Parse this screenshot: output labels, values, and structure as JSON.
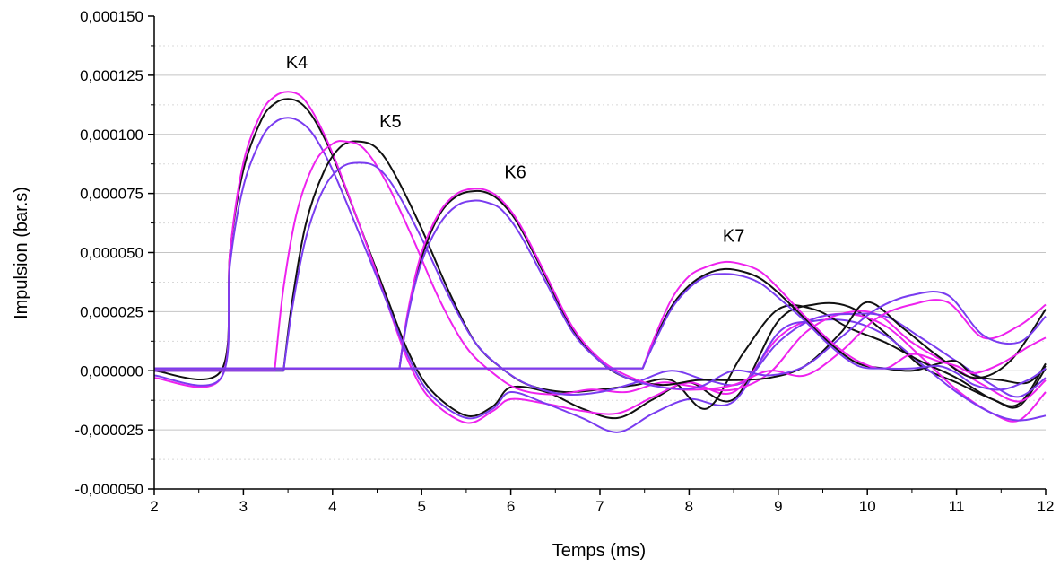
{
  "chart_data": {
    "type": "line",
    "title": "",
    "xlabel": "Temps (ms)",
    "ylabel": "Impulsion (bar.s)",
    "xlim": [
      2,
      12
    ],
    "ylim": [
      -5e-05,
      0.00015
    ],
    "x_ticks": [
      2,
      3,
      4,
      5,
      6,
      7,
      8,
      9,
      10,
      11,
      12
    ],
    "y_ticks": [
      "-0,000050",
      "-0,000025",
      "0,000000",
      "0,000025",
      "0,000050",
      "0,000075",
      "0,000100",
      "0,000125",
      "0,000150"
    ],
    "grid": {
      "major_y": true,
      "minor_y_dotted": true,
      "x": false
    },
    "legend": "none",
    "colors": {
      "black": "#111111",
      "magenta": "#ee22ee",
      "purple": "#7a3cf0"
    },
    "annotations": [
      {
        "text": "K4",
        "x": 3.6,
        "y": 0.000128
      },
      {
        "text": "K5",
        "x": 4.65,
        "y": 0.000103
      },
      {
        "text": "K6",
        "x": 6.05,
        "y": 8.15e-05
      },
      {
        "text": "K7",
        "x": 8.5,
        "y": 5.45e-05
      }
    ],
    "series": [
      {
        "group": "K4",
        "color": "#111111",
        "x": [
          2,
          2.75,
          2.85,
          3.0,
          3.2,
          3.35,
          3.5,
          3.65,
          3.8,
          4.0,
          4.3,
          4.6,
          4.85,
          5.1,
          5.5,
          5.8,
          6.0,
          6.4,
          6.8,
          7.2,
          7.6,
          8.0,
          8.5,
          9.0,
          9.4,
          9.8,
          10.2,
          10.6,
          11.0,
          11.4,
          11.7,
          12
        ],
        "y": [
          0,
          0,
          5e-05,
          8.5e-05,
          0.000106,
          0.000113,
          0.000115,
          0.000113,
          0.000106,
          9.1e-05,
          6.2e-05,
          3.2e-05,
          8e-06,
          -8e-06,
          -1.9e-05,
          -1.5e-05,
          -7e-06,
          -9e-06,
          -1.6e-05,
          -2e-05,
          -1.2e-05,
          -5e-06,
          -1.2e-05,
          2.1e-05,
          2.8e-05,
          2.7e-05,
          1.6e-05,
          2e-06,
          -5e-06,
          -1.2e-05,
          -1.5e-05,
          1e-06
        ]
      },
      {
        "group": "K4",
        "color": "#ee22ee",
        "x": [
          2,
          2.75,
          2.85,
          3.0,
          3.2,
          3.35,
          3.5,
          3.65,
          3.8,
          4.0,
          4.3,
          4.6,
          4.85,
          5.1,
          5.5,
          5.8,
          6.0,
          6.4,
          6.8,
          7.2,
          7.6,
          8.0,
          8.5,
          9.0,
          9.4,
          9.8,
          10.2,
          10.6,
          11.0,
          11.4,
          11.7,
          12
        ],
        "y": [
          -3e-06,
          -3e-06,
          5e-05,
          8.8e-05,
          0.000109,
          0.000116,
          0.000118,
          0.000116,
          0.000108,
          9.2e-05,
          6.2e-05,
          3e-05,
          4e-06,
          -1.2e-05,
          -2.2e-05,
          -1.7e-05,
          -1.2e-05,
          -1.4e-05,
          -1.7e-05,
          -1.8e-05,
          -1.1e-05,
          -5e-06,
          -9e-06,
          1.4e-05,
          2.2e-05,
          2.4e-05,
          1.9e-05,
          6e-06,
          -8e-06,
          -1.8e-05,
          -2.1e-05,
          -9e-06
        ]
      },
      {
        "group": "K4",
        "color": "#7a3cf0",
        "x": [
          2,
          2.75,
          2.85,
          3.0,
          3.2,
          3.35,
          3.5,
          3.65,
          3.8,
          4.0,
          4.3,
          4.6,
          4.85,
          5.1,
          5.5,
          5.8,
          6.0,
          6.4,
          6.8,
          7.2,
          7.6,
          8.0,
          8.5,
          9.0,
          9.4,
          9.8,
          10.2,
          10.6,
          11.0,
          11.4,
          11.7,
          12
        ],
        "y": [
          -2e-06,
          -3e-06,
          4.5e-05,
          7.8e-05,
          9.8e-05,
          0.000105,
          0.000107,
          0.000105,
          9.9e-05,
          8.5e-05,
          5.8e-05,
          3e-05,
          6e-06,
          -1e-05,
          -2e-05,
          -1.6e-05,
          -9e-06,
          -1.4e-05,
          -2e-05,
          -2.6e-05,
          -1.8e-05,
          -1.2e-05,
          -1.3e-05,
          1.6e-05,
          2.1e-05,
          2.1e-05,
          1.5e-05,
          3e-06,
          -9e-06,
          -1.8e-05,
          -2.1e-05,
          -1.9e-05
        ]
      },
      {
        "group": "K5",
        "color": "#111111",
        "x": [
          2,
          3.45,
          3.55,
          3.7,
          3.9,
          4.1,
          4.3,
          4.5,
          4.7,
          5.0,
          5.3,
          5.6,
          5.9,
          6.2,
          6.6,
          7.0,
          7.4,
          7.8,
          8.2,
          8.6,
          9.0,
          9.4,
          9.8,
          10.2,
          10.6,
          11.0,
          11.4,
          11.7,
          12
        ],
        "y": [
          0,
          0,
          3e-05,
          6.2e-05,
          8.4e-05,
          9.5e-05,
          9.7e-05,
          9.4e-05,
          8.3e-05,
          6e-05,
          3.4e-05,
          1.2e-05,
          1e-06,
          -6e-06,
          -9e-06,
          -8e-06,
          -6e-06,
          -4e-06,
          -1.6e-05,
          7e-06,
          2.6e-05,
          2.6e-05,
          1.8e-05,
          1.2e-05,
          4e-06,
          -3e-06,
          -1.2e-05,
          -1.4e-05,
          3e-06
        ]
      },
      {
        "group": "K5",
        "color": "#ee22ee",
        "x": [
          2,
          3.35,
          3.45,
          3.6,
          3.8,
          4.0,
          4.15,
          4.35,
          4.6,
          4.9,
          5.2,
          5.5,
          5.8,
          6.1,
          6.5,
          6.9,
          7.3,
          7.7,
          8.1,
          8.5,
          8.9,
          9.3,
          9.7,
          10.1,
          10.5,
          10.9,
          11.3,
          11.7,
          12
        ],
        "y": [
          0,
          0,
          3.5e-05,
          6.7e-05,
          8.8e-05,
          9.6e-05,
          9.7e-05,
          9.4e-05,
          8e-05,
          5.6e-05,
          3e-05,
          1e-05,
          -1e-06,
          -8e-06,
          -1e-05,
          -8e-06,
          -9e-06,
          -5e-06,
          -7e-06,
          -8e-06,
          -1e-06,
          1.6e-05,
          2.4e-05,
          2.4e-05,
          1.2e-05,
          3e-06,
          -6e-06,
          -1.3e-05,
          -4e-06
        ]
      },
      {
        "group": "K5",
        "color": "#7a3cf0",
        "x": [
          2,
          3.45,
          3.55,
          3.7,
          3.9,
          4.1,
          4.3,
          4.5,
          4.7,
          5.0,
          5.3,
          5.6,
          5.9,
          6.2,
          6.6,
          7.0,
          7.4,
          7.8,
          8.2,
          8.6,
          9.0,
          9.4,
          9.8,
          10.2,
          10.6,
          11.0,
          11.4,
          11.7,
          12
        ],
        "y": [
          0,
          0,
          2.7e-05,
          5.6e-05,
          7.7e-05,
          8.6e-05,
          8.8e-05,
          8.6e-05,
          7.7e-05,
          5.6e-05,
          3.2e-05,
          1.2e-05,
          1e-06,
          -6e-06,
          -1e-05,
          -9e-06,
          -5e-06,
          0,
          -4e-06,
          -5e-06,
          1.2e-05,
          2.2e-05,
          2.4e-05,
          2.3e-05,
          1.4e-05,
          4e-06,
          -6e-06,
          -1.1e-05,
          -3e-06
        ]
      },
      {
        "group": "K6",
        "color": "#111111",
        "x": [
          2,
          4.75,
          4.85,
          5.0,
          5.2,
          5.4,
          5.6,
          5.75,
          5.9,
          6.1,
          6.4,
          6.7,
          7.0,
          7.3,
          7.7,
          8.1,
          8.5,
          8.9,
          9.3,
          9.7,
          10.0,
          10.4,
          10.8,
          11.2,
          11.6,
          12
        ],
        "y": [
          1e-06,
          1e-06,
          2.5e-05,
          4.8e-05,
          6.6e-05,
          7.4e-05,
          7.6e-05,
          7.5e-05,
          7.1e-05,
          6.1e-05,
          3.9e-05,
          1.7e-05,
          4e-06,
          -3e-06,
          -6e-06,
          -4e-06,
          -4e-06,
          -3e-06,
          2e-06,
          1.6e-05,
          2.9e-05,
          1.8e-05,
          6e-06,
          -3e-06,
          4e-06,
          2.6e-05
        ]
      },
      {
        "group": "K6",
        "color": "#ee22ee",
        "x": [
          2,
          4.75,
          4.85,
          5.0,
          5.2,
          5.4,
          5.6,
          5.75,
          5.9,
          6.1,
          6.4,
          6.7,
          7.0,
          7.3,
          7.7,
          8.1,
          8.5,
          8.9,
          9.3,
          9.7,
          10.1,
          10.5,
          10.9,
          11.3,
          11.7,
          12
        ],
        "y": [
          1e-06,
          1e-06,
          2.6e-05,
          5e-05,
          6.7e-05,
          7.5e-05,
          7.7e-05,
          7.6e-05,
          7.2e-05,
          6.2e-05,
          4e-05,
          1.8e-05,
          5e-06,
          -2e-06,
          -7e-06,
          -8e-06,
          -6e-06,
          0,
          -2e-06,
          8e-06,
          2.2e-05,
          2.8e-05,
          2.9e-05,
          1.4e-05,
          1.9e-05,
          2.8e-05
        ]
      },
      {
        "group": "K6",
        "color": "#7a3cf0",
        "x": [
          2,
          4.75,
          4.85,
          5.0,
          5.2,
          5.4,
          5.6,
          5.75,
          5.9,
          6.1,
          6.4,
          6.7,
          7.0,
          7.3,
          7.7,
          8.1,
          8.5,
          8.9,
          9.3,
          9.7,
          10.1,
          10.5,
          10.9,
          11.3,
          11.7,
          12
        ],
        "y": [
          1e-06,
          1e-06,
          2.4e-05,
          4.6e-05,
          6.2e-05,
          7e-05,
          7.2e-05,
          7.1e-05,
          6.8e-05,
          5.8e-05,
          3.7e-05,
          1.6e-05,
          4e-06,
          -3e-06,
          -7e-06,
          -7e-06,
          0,
          -2e-06,
          2e-06,
          1.4e-05,
          2.6e-05,
          3.2e-05,
          3.2e-05,
          1.5e-05,
          1.2e-05,
          2.3e-05
        ]
      },
      {
        "group": "K7",
        "color": "#111111",
        "x": [
          2,
          7.48,
          7.6,
          7.8,
          8.0,
          8.2,
          8.4,
          8.6,
          8.8,
          9.0,
          9.3,
          9.6,
          9.9,
          10.2,
          10.5,
          10.8,
          11.0,
          11.2,
          11.5,
          11.8,
          12
        ],
        "y": [
          1e-06,
          1e-06,
          1.2e-05,
          2.7e-05,
          3.6e-05,
          4.1e-05,
          4.3e-05,
          4.2e-05,
          3.9e-05,
          3.3e-05,
          2.2e-05,
          1.1e-05,
          3e-06,
          1e-06,
          0,
          3e-06,
          4e-06,
          -2e-06,
          -4e-06,
          -5e-06,
          2e-06
        ]
      },
      {
        "group": "K7",
        "color": "#ee22ee",
        "x": [
          2,
          7.48,
          7.6,
          7.8,
          8.0,
          8.2,
          8.4,
          8.6,
          8.8,
          9.0,
          9.3,
          9.6,
          9.9,
          10.2,
          10.5,
          10.8,
          11.0,
          11.2,
          11.5,
          11.8,
          12
        ],
        "y": [
          1e-06,
          1e-06,
          1.3e-05,
          3e-05,
          4e-05,
          4.4e-05,
          4.6e-05,
          4.5e-05,
          4.2e-05,
          3.5e-05,
          2.3e-05,
          1.2e-05,
          4e-06,
          1e-06,
          7e-06,
          4e-06,
          2e-06,
          -1e-06,
          3e-06,
          1e-05,
          1.4e-05
        ]
      },
      {
        "group": "K7",
        "color": "#7a3cf0",
        "x": [
          2,
          7.48,
          7.6,
          7.8,
          8.0,
          8.2,
          8.4,
          8.6,
          8.8,
          9.0,
          9.3,
          9.6,
          9.9,
          10.2,
          10.5,
          10.8,
          11.0,
          11.2,
          11.5,
          11.8,
          12
        ],
        "y": [
          1e-06,
          1e-06,
          1.1e-05,
          2.6e-05,
          3.5e-05,
          4e-05,
          4.1e-05,
          4e-05,
          3.7e-05,
          3.1e-05,
          2.1e-05,
          1e-05,
          2e-06,
          1e-06,
          1e-06,
          2e-06,
          -1e-06,
          -6e-06,
          -8e-06,
          -4e-06,
          1e-06
        ]
      }
    ]
  }
}
